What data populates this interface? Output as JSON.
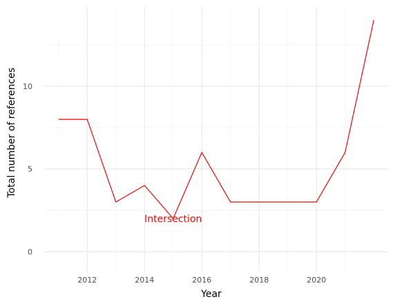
{
  "chart_data": {
    "type": "line",
    "title": "",
    "xlabel": "Year",
    "ylabel": "Total number of references",
    "xlim": [
      2010.5,
      2022.5
    ],
    "ylim": [
      -1.2,
      14.8
    ],
    "x_ticks": [
      2012,
      2014,
      2016,
      2018,
      2020
    ],
    "y_ticks": [
      0,
      5,
      10
    ],
    "x_tick_labels": [
      "2012",
      "2014",
      "2016",
      "2018",
      "2020"
    ],
    "y_tick_labels": [
      "0",
      "5",
      "10"
    ],
    "grid": true,
    "legend": "none",
    "series": [
      {
        "color": "#ff0000",
        "x": [
          2011,
          2012,
          2013,
          2014,
          2015,
          2016,
          2017,
          2018,
          2019,
          2020,
          2021,
          2022
        ],
        "y": [
          8,
          8,
          3,
          4,
          2,
          6,
          3,
          3,
          3,
          3,
          6,
          14
        ]
      }
    ],
    "annotations": [
      {
        "text": "Intersection",
        "x": 2015,
        "y": 2,
        "color": "#ff0000"
      }
    ]
  }
}
